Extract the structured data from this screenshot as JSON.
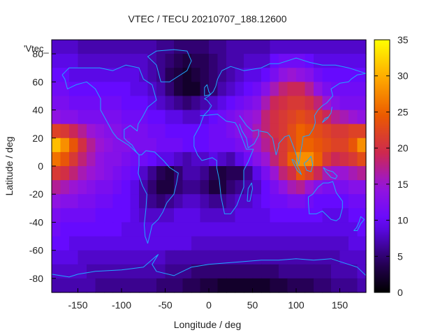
{
  "chart_data": {
    "type": "heatmap",
    "title": "VTEC / TECU 20210707_188.12600",
    "xlabel": "Longitude / deg",
    "ylabel": "Latitude / deg",
    "key_label": "'Vtec_",
    "xlim": [
      -180,
      180
    ],
    "ylim": [
      -90,
      90
    ],
    "xticks": [
      -150,
      -100,
      -50,
      0,
      50,
      100,
      150
    ],
    "yticks": [
      80,
      60,
      40,
      20,
      0,
      -20,
      -40,
      -60,
      -80
    ],
    "colorbar": {
      "range": [
        0,
        35
      ],
      "ticks": [
        0,
        5,
        10,
        15,
        20,
        25,
        30,
        35
      ]
    },
    "grid": false,
    "x_columns": [
      -175,
      -165,
      -155,
      -145,
      -135,
      -125,
      -115,
      -105,
      -95,
      -85,
      -75,
      -65,
      -55,
      -45,
      -35,
      -25,
      -15,
      -5,
      5,
      15,
      25,
      35,
      45,
      55,
      65,
      75,
      85,
      95,
      105,
      115,
      125,
      135,
      145,
      155,
      165,
      175
    ],
    "y_rows": [
      85,
      75,
      65,
      55,
      45,
      35,
      25,
      15,
      5,
      -5,
      -15,
      -25,
      -35,
      -45,
      -55,
      -65,
      -75,
      -85
    ],
    "values": [
      [
        8,
        8,
        8,
        7,
        7,
        7,
        7,
        7,
        7,
        7,
        7,
        7,
        6,
        6,
        5,
        5,
        5,
        5,
        6,
        6,
        7,
        7,
        7,
        7,
        7,
        8,
        8,
        8,
        8,
        8,
        8,
        8,
        8,
        8,
        8,
        8
      ],
      [
        9,
        9,
        9,
        8,
        8,
        8,
        8,
        8,
        8,
        8,
        8,
        7,
        6,
        5,
        4,
        3,
        4,
        4,
        5,
        6,
        7,
        7,
        8,
        8,
        8,
        10,
        11,
        11,
        11,
        10,
        9,
        9,
        9,
        9,
        9,
        9
      ],
      [
        10,
        10,
        9,
        9,
        9,
        9,
        9,
        9,
        9,
        9,
        8,
        7,
        6,
        4,
        3,
        2,
        3,
        4,
        5,
        6,
        7,
        8,
        9,
        9,
        10,
        12,
        14,
        15,
        14,
        13,
        11,
        10,
        10,
        10,
        10,
        10
      ],
      [
        11,
        11,
        10,
        10,
        10,
        10,
        10,
        10,
        10,
        9,
        9,
        8,
        7,
        5,
        3,
        2,
        2,
        4,
        5,
        7,
        8,
        9,
        10,
        11,
        13,
        16,
        18,
        19,
        19,
        17,
        14,
        12,
        11,
        11,
        11,
        11
      ],
      [
        12,
        12,
        11,
        11,
        11,
        11,
        11,
        11,
        10,
        10,
        10,
        9,
        8,
        7,
        6,
        5,
        6,
        7,
        8,
        9,
        10,
        11,
        12,
        13,
        16,
        19,
        20,
        21,
        21,
        20,
        18,
        15,
        13,
        12,
        12,
        12
      ],
      [
        14,
        13,
        13,
        12,
        12,
        12,
        12,
        12,
        11,
        11,
        11,
        10,
        10,
        9,
        9,
        8,
        8,
        9,
        10,
        11,
        12,
        13,
        14,
        15,
        18,
        20,
        21,
        22,
        23,
        22,
        21,
        19,
        17,
        16,
        15,
        14
      ],
      [
        22,
        21,
        19,
        17,
        15,
        14,
        13,
        13,
        12,
        12,
        12,
        11,
        11,
        10,
        10,
        10,
        10,
        10,
        11,
        11,
        12,
        13,
        14,
        16,
        18,
        20,
        21,
        23,
        25,
        24,
        23,
        22,
        21,
        21,
        22,
        22
      ],
      [
        31,
        28,
        24,
        20,
        17,
        15,
        14,
        13,
        13,
        12,
        12,
        12,
        11,
        11,
        11,
        10,
        10,
        10,
        11,
        11,
        11,
        12,
        13,
        15,
        17,
        19,
        21,
        23,
        25,
        25,
        24,
        23,
        22,
        22,
        24,
        28
      ],
      [
        26,
        24,
        21,
        18,
        16,
        14,
        13,
        13,
        12,
        11,
        11,
        10,
        9,
        9,
        8,
        7,
        8,
        8,
        9,
        8,
        7,
        9,
        11,
        13,
        15,
        18,
        21,
        25,
        28,
        28,
        25,
        21,
        19,
        20,
        21,
        23
      ],
      [
        21,
        20,
        18,
        16,
        15,
        14,
        13,
        12,
        11,
        10,
        8,
        6,
        4,
        3,
        5,
        7,
        7,
        6,
        4,
        3,
        4,
        4,
        6,
        9,
        12,
        15,
        18,
        20,
        24,
        22,
        19,
        16,
        15,
        15,
        16,
        17
      ],
      [
        17,
        16,
        15,
        14,
        13,
        12,
        12,
        11,
        10,
        9,
        7,
        5,
        3,
        3,
        5,
        6,
        6,
        5,
        3,
        3,
        5,
        6,
        7,
        8,
        10,
        12,
        14,
        16,
        17,
        15,
        13,
        12,
        12,
        12,
        13,
        13
      ],
      [
        14,
        13,
        13,
        12,
        12,
        11,
        11,
        10,
        10,
        9,
        7,
        6,
        5,
        6,
        7,
        8,
        8,
        7,
        6,
        6,
        7,
        8,
        8,
        9,
        10,
        11,
        11,
        12,
        12,
        11,
        10,
        10,
        10,
        10,
        11,
        11
      ],
      [
        12,
        11,
        11,
        11,
        11,
        10,
        10,
        10,
        10,
        9,
        8,
        8,
        8,
        8,
        9,
        9,
        9,
        8,
        8,
        8,
        8,
        9,
        9,
        9,
        9,
        10,
        10,
        10,
        10,
        10,
        10,
        9,
        9,
        9,
        10,
        10
      ],
      [
        11,
        10,
        10,
        10,
        10,
        10,
        10,
        10,
        9,
        9,
        9,
        9,
        9,
        9,
        9,
        9,
        9,
        9,
        9,
        9,
        9,
        9,
        9,
        9,
        9,
        9,
        9,
        9,
        9,
        9,
        9,
        9,
        9,
        9,
        9,
        10
      ],
      [
        10,
        10,
        9,
        9,
        9,
        9,
        9,
        9,
        9,
        9,
        9,
        9,
        9,
        9,
        9,
        9,
        8,
        8,
        8,
        8,
        8,
        8,
        8,
        8,
        8,
        8,
        8,
        8,
        8,
        8,
        8,
        8,
        8,
        8,
        9,
        9
      ],
      [
        9,
        9,
        9,
        8,
        8,
        8,
        8,
        8,
        8,
        8,
        8,
        8,
        8,
        7,
        7,
        7,
        7,
        7,
        7,
        7,
        7,
        7,
        7,
        7,
        7,
        7,
        7,
        7,
        7,
        7,
        7,
        7,
        7,
        8,
        8,
        8
      ],
      [
        8,
        8,
        8,
        8,
        7,
        7,
        7,
        7,
        7,
        7,
        7,
        7,
        7,
        6,
        6,
        6,
        5,
        5,
        5,
        5,
        5,
        5,
        5,
        5,
        5,
        5,
        6,
        6,
        6,
        6,
        6,
        6,
        7,
        7,
        7,
        8
      ],
      [
        7,
        7,
        7,
        7,
        7,
        6,
        6,
        6,
        6,
        6,
        6,
        6,
        5,
        5,
        5,
        4,
        4,
        3,
        3,
        2,
        2,
        2,
        2,
        2,
        2,
        3,
        3,
        4,
        4,
        4,
        5,
        5,
        6,
        6,
        6,
        7
      ]
    ]
  }
}
